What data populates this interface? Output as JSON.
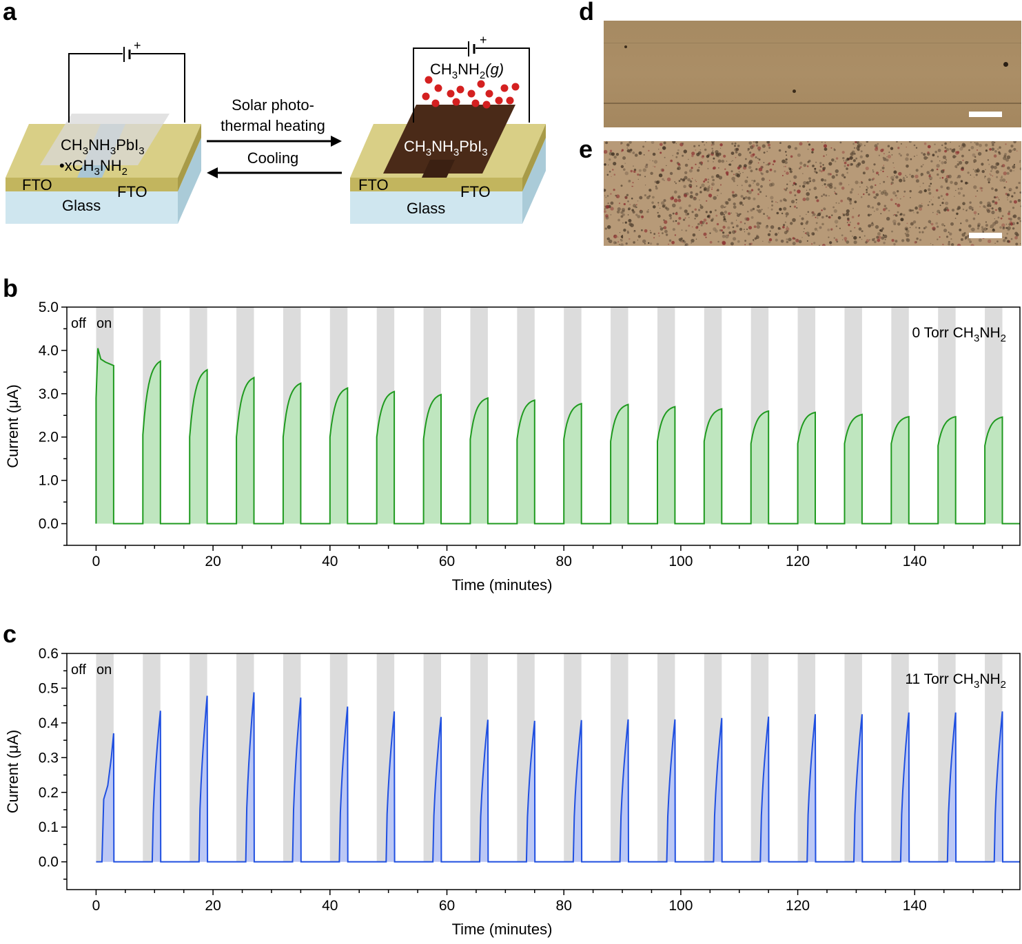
{
  "panels": {
    "a": {
      "letter": "a",
      "left_device": {
        "layer_label_line1_base": "CH",
        "sub1": "3",
        "mid1": "NH",
        "sub2": "3",
        "mid2": "PbI",
        "sub3": "3",
        "line2_base": "•xCH",
        "line2_sub1": "3",
        "line2_mid": "NH",
        "line2_sub2": "2",
        "fto_left": "FTO",
        "fto_right": "FTO",
        "glass": "Glass",
        "battery_plus": "+"
      },
      "right_device": {
        "gas_base": "CH",
        "gas_sub1": "3",
        "gas_mid": "NH",
        "gas_sub2": "2",
        "gas_paren": "(g)",
        "layer_base": "CH",
        "layer_sub1": "3",
        "layer_mid": "NH",
        "layer_sub2": "3",
        "layer_mid2": "PbI",
        "layer_sub3": "3",
        "fto_left": "FTO",
        "fto_right": "FTO",
        "glass": "Glass",
        "battery_plus": "+"
      },
      "arrow_forward_line1": "Solar photo-",
      "arrow_forward_line2": "thermal heating",
      "arrow_back": "Cooling",
      "colors": {
        "fto": "#c8bb6a",
        "glass": "#c8e0ea",
        "perovskite_complex": "#cfcfcf",
        "perovskite": "#4a2a18",
        "gas_dots": "#d42020"
      }
    },
    "d": {
      "letter": "d",
      "color": "#a8895e"
    },
    "e": {
      "letter": "e",
      "color": "#b89a78"
    }
  },
  "chart_data": [
    {
      "panel": "b",
      "type": "area",
      "xlabel": "Time (minutes)",
      "ylabel": "Current (μA)",
      "xlim": [
        -5,
        158
      ],
      "ylim": [
        -0.5,
        5.0
      ],
      "xticks": [
        "0",
        "20",
        "40",
        "60",
        "80",
        "100",
        "120",
        "140"
      ],
      "xtick_values": [
        0,
        20,
        40,
        60,
        80,
        100,
        120,
        140
      ],
      "yticks": [
        "0.0",
        "1.0",
        "2.0",
        "3.0",
        "4.0",
        "5.0"
      ],
      "ytick_values": [
        0,
        1,
        2,
        3,
        4,
        5
      ],
      "off_label": "off",
      "on_label": "on",
      "annotation_base": "0 Torr CH",
      "annotation_sub1": "3",
      "annotation_mid": "NH",
      "annotation_sub2": "2",
      "line_color": "#1f9a1f",
      "fill_color": "#bfe6bf",
      "shade_color": "#dcdcdc",
      "cycle_starts": [
        0,
        8,
        16,
        24,
        32,
        40,
        48,
        56,
        64,
        72,
        80,
        88,
        96,
        104,
        112,
        120,
        128,
        136,
        144,
        152
      ],
      "on_duration": 3,
      "peak_values": [
        4.05,
        3.75,
        3.55,
        3.37,
        3.24,
        3.13,
        3.05,
        2.98,
        2.9,
        2.85,
        2.77,
        2.75,
        2.7,
        2.65,
        2.6,
        2.57,
        2.52,
        2.47,
        2.47,
        2.46
      ],
      "start_values": [
        2.9,
        2.05,
        2.0,
        2.0,
        2.0,
        2.0,
        2.0,
        1.95,
        1.95,
        1.95,
        1.95,
        1.9,
        1.9,
        1.9,
        1.85,
        1.85,
        1.85,
        1.85,
        1.8,
        1.8
      ]
    },
    {
      "panel": "c",
      "type": "area",
      "xlabel": "Time (minutes)",
      "ylabel": "Current (μA)",
      "xlim": [
        -5,
        158
      ],
      "ylim": [
        -0.08,
        0.6
      ],
      "xticks": [
        "0",
        "20",
        "40",
        "60",
        "80",
        "100",
        "120",
        "140"
      ],
      "xtick_values": [
        0,
        20,
        40,
        60,
        80,
        100,
        120,
        140
      ],
      "yticks": [
        "0.0",
        "0.1",
        "0.2",
        "0.3",
        "0.4",
        "0.5",
        "0.6"
      ],
      "ytick_values": [
        0,
        0.1,
        0.2,
        0.3,
        0.4,
        0.5,
        0.6
      ],
      "off_label": "off",
      "on_label": "on",
      "annotation_base": "11 Torr CH",
      "annotation_sub1": "3",
      "annotation_mid": "NH",
      "annotation_sub2": "2",
      "line_color": "#1f4fe0",
      "fill_color": "#bcc8f5",
      "shade_color": "#dcdcdc",
      "cycle_starts": [
        0,
        8,
        16,
        24,
        32,
        40,
        48,
        56,
        64,
        72,
        80,
        88,
        96,
        104,
        112,
        120,
        128,
        136,
        144,
        152
      ],
      "on_duration": 3,
      "peak_values": [
        0.37,
        0.435,
        0.478,
        0.488,
        0.473,
        0.447,
        0.433,
        0.417,
        0.409,
        0.406,
        0.408,
        0.41,
        0.41,
        0.414,
        0.418,
        0.425,
        0.425,
        0.43,
        0.43,
        0.433
      ]
    }
  ]
}
